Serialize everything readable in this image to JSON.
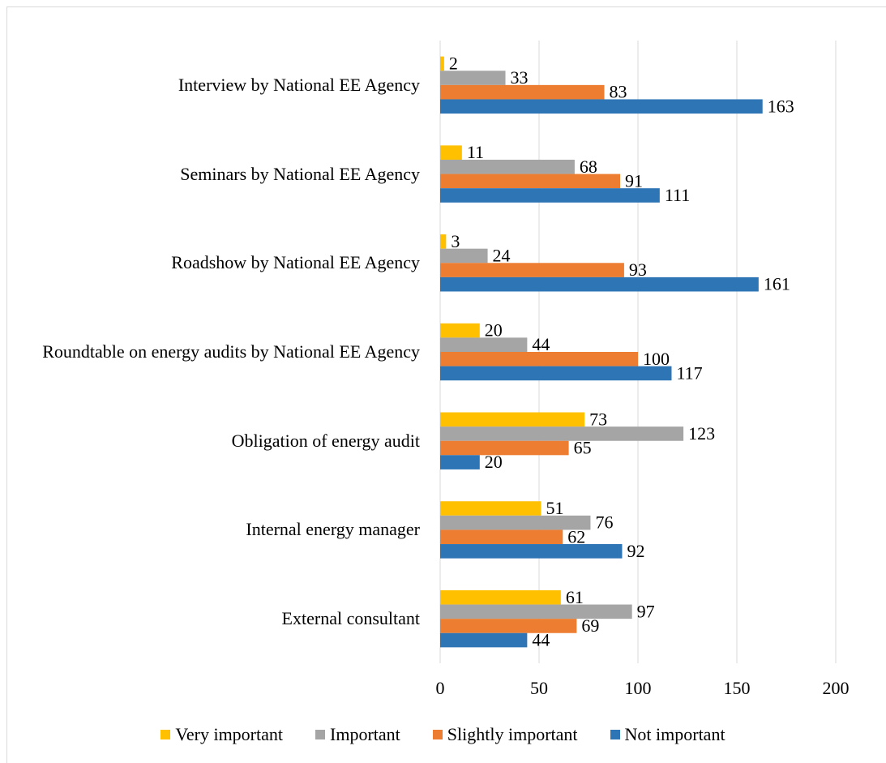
{
  "chart_data": {
    "type": "bar",
    "orientation": "horizontal",
    "categories": [
      "Interview by National EE Agency",
      "Seminars by National EE Agency",
      "Roadshow by National EE Agency",
      "Roundtable on energy audits by National EE Agency",
      "Obligation of energy audit",
      "Internal energy manager",
      "External consultant"
    ],
    "series": [
      {
        "name": "Very important",
        "color": "#ffc000",
        "values": [
          2,
          11,
          3,
          20,
          73,
          51,
          61
        ]
      },
      {
        "name": "Important",
        "color": "#a5a5a5",
        "values": [
          33,
          68,
          24,
          44,
          123,
          76,
          97
        ]
      },
      {
        "name": "Slightly important",
        "color": "#ed7d31",
        "values": [
          83,
          91,
          93,
          100,
          65,
          62,
          69
        ]
      },
      {
        "name": "Not important",
        "color": "#2e75b6",
        "values": [
          163,
          111,
          161,
          117,
          20,
          92,
          44
        ]
      }
    ],
    "xlim": [
      0,
      200
    ],
    "xticks": [
      0,
      50,
      100,
      150,
      200
    ],
    "grid": true,
    "legend": "bottom"
  }
}
